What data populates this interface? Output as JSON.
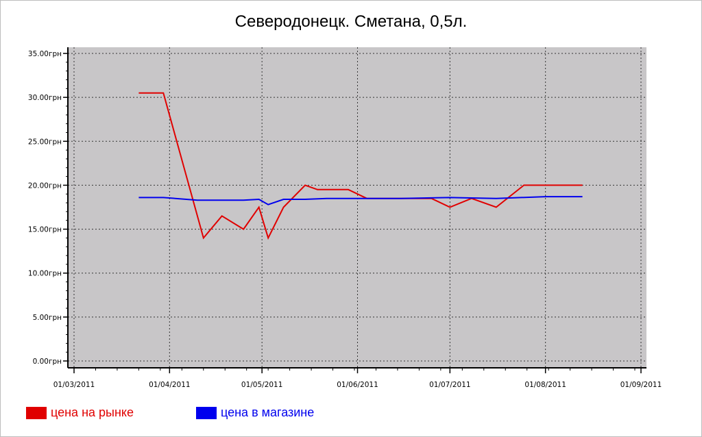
{
  "chart_data": {
    "type": "line",
    "title": "Северодонецк. Сметана, 0,5л.",
    "xlabel": "",
    "ylabel": "",
    "x_range": [
      "2011-03-01",
      "2011-09-01"
    ],
    "x_ticks": [
      "01/03/2011",
      "01/04/2011",
      "01/05/2011",
      "01/06/2011",
      "01/07/2011",
      "01/08/2011",
      "01/09/2011"
    ],
    "ylim": [
      0,
      35
    ],
    "y_ticks": [
      "0.00грн",
      "5.00грн",
      "10.00грн",
      "15.00грн",
      "20.00грн",
      "25.00грн",
      "30.00грн",
      "35.00грн"
    ],
    "grid": true,
    "legend_position": "bottom-left",
    "series": [
      {
        "name": "цена на рынке",
        "color": "#e00000",
        "points": [
          [
            "2011-03-22",
            30.5
          ],
          [
            "2011-03-30",
            30.5
          ],
          [
            "2011-04-12",
            14.0
          ],
          [
            "2011-04-18",
            16.5
          ],
          [
            "2011-04-25",
            15.0
          ],
          [
            "2011-04-30",
            17.5
          ],
          [
            "2011-05-03",
            14.0
          ],
          [
            "2011-05-08",
            17.5
          ],
          [
            "2011-05-15",
            20.0
          ],
          [
            "2011-05-19",
            19.5
          ],
          [
            "2011-05-29",
            19.5
          ],
          [
            "2011-06-04",
            18.5
          ],
          [
            "2011-06-25",
            18.5
          ],
          [
            "2011-07-01",
            17.5
          ],
          [
            "2011-07-08",
            18.5
          ],
          [
            "2011-07-16",
            17.5
          ],
          [
            "2011-07-25",
            20.0
          ],
          [
            "2011-08-13",
            20.0
          ]
        ]
      },
      {
        "name": "цена в магазине",
        "color": "#0000ee",
        "points": [
          [
            "2011-03-22",
            18.6
          ],
          [
            "2011-03-30",
            18.6
          ],
          [
            "2011-04-10",
            18.3
          ],
          [
            "2011-04-25",
            18.3
          ],
          [
            "2011-04-30",
            18.4
          ],
          [
            "2011-05-03",
            17.8
          ],
          [
            "2011-05-08",
            18.4
          ],
          [
            "2011-05-15",
            18.4
          ],
          [
            "2011-05-22",
            18.5
          ],
          [
            "2011-06-01",
            18.5
          ],
          [
            "2011-06-15",
            18.5
          ],
          [
            "2011-07-01",
            18.6
          ],
          [
            "2011-07-16",
            18.5
          ],
          [
            "2011-08-01",
            18.7
          ],
          [
            "2011-08-13",
            18.7
          ]
        ]
      }
    ]
  },
  "legend": {
    "market_label": "цена на рынке",
    "store_label": "цена в магазине"
  },
  "colors": {
    "plot_background": "#c8c6c8",
    "market": "#e00000",
    "store": "#0000ee"
  }
}
